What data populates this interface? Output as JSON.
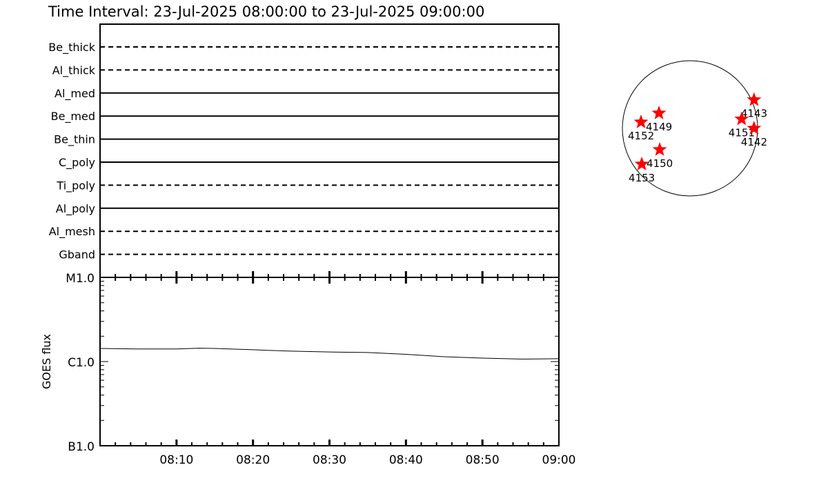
{
  "title": "Time Interval: 23-Jul-2025 08:00:00 to 23-Jul-2025 09:00:00",
  "chart_data": [
    {
      "type": "line",
      "panel": "filter-timeline",
      "categories": [
        "Be_thick",
        "Al_thick",
        "Al_med",
        "Be_med",
        "Be_thin",
        "C_poly",
        "Ti_poly",
        "Al_poly",
        "Al_mesh",
        "Gband"
      ],
      "line_styles": [
        "dashed",
        "dashed",
        "solid",
        "solid",
        "solid",
        "solid",
        "dashed",
        "solid",
        "dashed",
        "dashed"
      ]
    },
    {
      "type": "line",
      "panel": "goes-flux",
      "ylabel": "GOES flux",
      "y_scale": "log",
      "ylim": [
        1e-07,
        1e-05
      ],
      "ytick_labels": [
        {
          "label": "B1.0",
          "value": 1e-07
        },
        {
          "label": "C1.0",
          "value": 1e-06
        },
        {
          "label": "M1.0",
          "value": 1e-05
        }
      ],
      "xlim": [
        "08:00",
        "09:00"
      ],
      "xtick_labels": [
        "08:10",
        "08:20",
        "08:30",
        "08:40",
        "08:50",
        "09:00"
      ],
      "x_minutes": [
        0,
        5,
        10,
        13,
        15,
        20,
        25,
        30,
        35,
        40,
        45,
        50,
        55,
        60
      ],
      "y": [
        1.43e-06,
        1.41e-06,
        1.41e-06,
        1.44e-06,
        1.43e-06,
        1.38e-06,
        1.33e-06,
        1.3e-06,
        1.28e-06,
        1.22e-06,
        1.14e-06,
        1.1e-06,
        1.07e-06,
        1.08e-06
      ]
    },
    {
      "type": "scatter",
      "panel": "solar-disk-active-regions",
      "units": "arcsec",
      "solar_radius": 950,
      "points": [
        {
          "label": "4143",
          "x": 900,
          "y": 400
        },
        {
          "label": "4151",
          "x": 725,
          "y": 130
        },
        {
          "label": "4142",
          "x": 900,
          "y": 0
        },
        {
          "label": "4149",
          "x": -436,
          "y": 213
        },
        {
          "label": "4152",
          "x": -688,
          "y": 87
        },
        {
          "label": "4150",
          "x": -426,
          "y": -300
        },
        {
          "label": "4153",
          "x": -678,
          "y": -504
        }
      ],
      "marker_color": "#ff0000"
    }
  ]
}
